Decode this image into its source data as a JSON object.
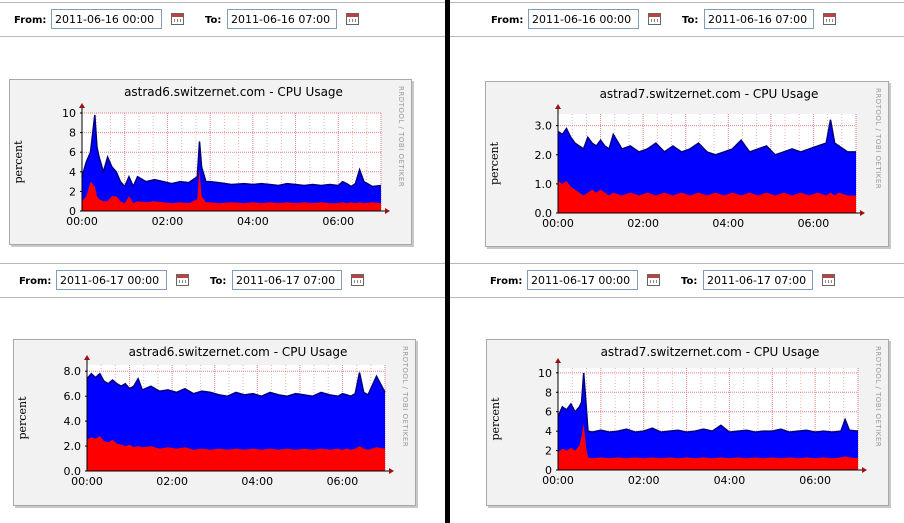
{
  "panels": [
    {
      "from_label": "From:",
      "from_value": "2011-06-16 00:00",
      "to_label": "To:",
      "to_value": "2011-06-16 07:00",
      "chart_data": {
        "type": "area",
        "title": "astrad6.switzernet.com - CPU Usage",
        "ylabel": "percent",
        "watermark": "RRDTOOL / TOBI OETIKER",
        "x_ticks": [
          "00:00",
          "02:00",
          "04:00",
          "06:00"
        ],
        "y_ticks": [
          "0",
          "2",
          "4",
          "6",
          "8",
          "10"
        ],
        "xlim": [
          0,
          7
        ],
        "ylim": [
          0,
          10
        ],
        "grid": true,
        "colors": {
          "total": "#0000ff",
          "lower": "#ff0000",
          "line": "#000080"
        },
        "x": [
          0.0,
          0.1,
          0.2,
          0.3,
          0.35,
          0.4,
          0.5,
          0.6,
          0.7,
          0.8,
          0.9,
          1.0,
          1.1,
          1.2,
          1.3,
          1.5,
          1.7,
          1.9,
          2.1,
          2.3,
          2.5,
          2.6,
          2.7,
          2.75,
          2.8,
          2.9,
          3.0,
          3.2,
          3.5,
          3.8,
          4.0,
          4.2,
          4.4,
          4.6,
          4.8,
          5.0,
          5.2,
          5.4,
          5.6,
          5.8,
          6.0,
          6.1,
          6.2,
          6.3,
          6.4,
          6.5,
          6.6,
          6.8,
          7.0
        ],
        "series": [
          {
            "values": [
              3.5,
              5.0,
              6.0,
              9.8,
              6.5,
              5.5,
              4.0,
              5.5,
              4.5,
              4.0,
              3.0,
              2.5,
              3.5,
              2.5,
              3.5,
              3.0,
              3.2,
              3.0,
              2.8,
              3.0,
              2.9,
              3.2,
              3.5,
              7.1,
              4.5,
              3.0,
              3.0,
              2.9,
              2.7,
              2.8,
              2.7,
              2.8,
              2.7,
              2.6,
              2.8,
              2.7,
              2.6,
              2.7,
              2.6,
              2.7,
              2.6,
              3.0,
              2.8,
              2.5,
              2.8,
              4.2,
              3.0,
              2.5,
              2.6
            ]
          },
          {
            "values": [
              1.0,
              1.5,
              3.0,
              2.5,
              1.5,
              1.2,
              1.0,
              1.0,
              1.5,
              1.5,
              1.0,
              0.8,
              1.5,
              0.8,
              1.0,
              0.9,
              1.0,
              0.9,
              0.8,
              0.9,
              0.8,
              1.0,
              1.2,
              4.2,
              1.5,
              0.9,
              0.9,
              0.8,
              0.9,
              0.8,
              0.9,
              0.8,
              0.9,
              0.8,
              0.9,
              0.8,
              0.9,
              0.8,
              0.9,
              0.8,
              0.8,
              0.9,
              0.8,
              0.9,
              0.8,
              0.9,
              0.8,
              0.9,
              0.8
            ]
          }
        ]
      }
    },
    {
      "from_label": "From:",
      "from_value": "2011-06-16 00:00",
      "to_label": "To:",
      "to_value": "2011-06-16 07:00",
      "chart_data": {
        "type": "area",
        "title": "astrad7.switzernet.com - CPU Usage",
        "ylabel": "percent",
        "watermark": "RRDTOOL / TOBI OETIKER",
        "x_ticks": [
          "00:00",
          "02:00",
          "04:00",
          "06:00"
        ],
        "y_ticks": [
          "0.0",
          "1.0",
          "2.0",
          "3.0"
        ],
        "xlim": [
          0,
          7
        ],
        "ylim": [
          0,
          3.4
        ],
        "grid": true,
        "colors": {
          "total": "#0000ff",
          "lower": "#ff0000",
          "line": "#000080"
        },
        "x": [
          0.0,
          0.1,
          0.2,
          0.3,
          0.4,
          0.5,
          0.6,
          0.7,
          0.8,
          0.9,
          1.0,
          1.1,
          1.2,
          1.3,
          1.5,
          1.7,
          1.9,
          2.1,
          2.3,
          2.5,
          2.7,
          2.9,
          3.1,
          3.3,
          3.5,
          3.7,
          3.9,
          4.1,
          4.3,
          4.5,
          4.7,
          4.9,
          5.1,
          5.3,
          5.5,
          5.7,
          5.9,
          6.1,
          6.3,
          6.4,
          6.5,
          6.6,
          6.8,
          7.0
        ],
        "series": [
          {
            "values": [
              2.8,
              2.7,
              2.9,
              2.6,
              2.4,
              2.3,
              2.2,
              2.6,
              2.4,
              2.3,
              2.5,
              2.3,
              2.2,
              2.7,
              2.2,
              2.3,
              2.1,
              2.2,
              2.4,
              2.1,
              2.3,
              2.1,
              2.2,
              2.4,
              2.1,
              2.0,
              2.1,
              2.2,
              2.5,
              2.1,
              2.2,
              2.3,
              2.0,
              2.1,
              2.2,
              2.1,
              2.2,
              2.3,
              2.4,
              3.2,
              2.4,
              2.3,
              2.1,
              2.1
            ]
          },
          {
            "values": [
              1.1,
              1.0,
              1.1,
              0.9,
              0.8,
              0.7,
              0.6,
              0.7,
              0.8,
              0.7,
              0.8,
              0.7,
              0.6,
              0.7,
              0.6,
              0.7,
              0.6,
              0.7,
              0.6,
              0.7,
              0.6,
              0.7,
              0.6,
              0.7,
              0.6,
              0.7,
              0.6,
              0.7,
              0.6,
              0.7,
              0.6,
              0.7,
              0.6,
              0.7,
              0.6,
              0.7,
              0.6,
              0.7,
              0.6,
              0.7,
              0.6,
              0.7,
              0.6,
              0.6
            ]
          }
        ]
      }
    },
    {
      "from_label": "From:",
      "from_value": "2011-06-17 00:00",
      "to_label": "To:",
      "to_value": "2011-06-17 07:00",
      "chart_data": {
        "type": "area",
        "title": "astrad6.switzernet.com - CPU Usage",
        "ylabel": "percent",
        "watermark": "RRDTOOL / TOBI OETIKER",
        "x_ticks": [
          "00:00",
          "02:00",
          "04:00",
          "06:00"
        ],
        "y_ticks": [
          "0.0",
          "2.0",
          "4.0",
          "6.0",
          "8.0"
        ],
        "xlim": [
          0,
          7
        ],
        "ylim": [
          0,
          8.5
        ],
        "grid": true,
        "colors": {
          "total": "#0000ff",
          "lower": "#ff0000",
          "line": "#000080"
        },
        "x": [
          0.0,
          0.1,
          0.2,
          0.3,
          0.4,
          0.5,
          0.6,
          0.7,
          0.8,
          0.9,
          1.0,
          1.1,
          1.2,
          1.3,
          1.5,
          1.7,
          1.9,
          2.1,
          2.3,
          2.5,
          2.7,
          2.9,
          3.1,
          3.3,
          3.5,
          3.7,
          3.9,
          4.1,
          4.3,
          4.5,
          4.7,
          4.9,
          5.1,
          5.3,
          5.5,
          5.7,
          5.9,
          6.0,
          6.1,
          6.2,
          6.3,
          6.4,
          6.5,
          6.6,
          6.8,
          7.0
        ],
        "series": [
          {
            "values": [
              7.4,
              7.8,
              7.5,
              7.8,
              7.2,
              7.0,
              7.3,
              7.0,
              6.8,
              7.0,
              6.6,
              6.8,
              7.4,
              6.5,
              6.8,
              6.4,
              6.5,
              6.3,
              6.6,
              6.2,
              6.4,
              6.3,
              6.1,
              6.0,
              6.3,
              6.1,
              6.2,
              6.0,
              6.3,
              6.1,
              6.0,
              6.2,
              6.1,
              6.0,
              6.3,
              6.1,
              6.0,
              6.2,
              6.1,
              6.0,
              6.2,
              7.9,
              6.3,
              6.1,
              7.6,
              6.3
            ]
          },
          {
            "values": [
              2.5,
              2.7,
              2.6,
              2.8,
              2.4,
              2.3,
              2.5,
              2.2,
              2.1,
              2.0,
              2.1,
              1.9,
              2.0,
              1.9,
              2.0,
              1.8,
              1.9,
              1.8,
              1.9,
              1.7,
              1.8,
              1.7,
              1.8,
              1.7,
              1.8,
              1.7,
              1.8,
              1.7,
              1.8,
              1.7,
              1.8,
              1.7,
              1.8,
              1.7,
              1.8,
              1.7,
              1.8,
              1.7,
              1.8,
              1.7,
              1.8,
              2.0,
              1.8,
              1.7,
              1.9,
              1.8
            ]
          }
        ]
      }
    },
    {
      "from_label": "From:",
      "from_value": "2011-06-17 00:00",
      "to_label": "To:",
      "to_value": "2011-06-17 07:00",
      "chart_data": {
        "type": "area",
        "title": "astrad7.switzernet.com - CPU Usage",
        "ylabel": "percent",
        "watermark": "RRDTOOL / TOBI OETIKER",
        "x_ticks": [
          "00:00",
          "02:00",
          "04:00",
          "06:00"
        ],
        "y_ticks": [
          "0",
          "2",
          "4",
          "6",
          "8",
          "10"
        ],
        "xlim": [
          0,
          7
        ],
        "ylim": [
          0,
          10.5
        ],
        "grid": true,
        "colors": {
          "total": "#0000ff",
          "lower": "#ff0000",
          "line": "#000080"
        },
        "x": [
          0.0,
          0.1,
          0.2,
          0.3,
          0.4,
          0.5,
          0.55,
          0.6,
          0.65,
          0.7,
          0.8,
          1.0,
          1.2,
          1.4,
          1.6,
          1.8,
          2.0,
          2.2,
          2.4,
          2.6,
          2.8,
          3.0,
          3.2,
          3.4,
          3.6,
          3.8,
          4.0,
          4.2,
          4.4,
          4.6,
          4.8,
          5.0,
          5.2,
          5.4,
          5.6,
          5.8,
          6.0,
          6.2,
          6.4,
          6.6,
          6.7,
          6.8,
          7.0
        ],
        "series": [
          {
            "values": [
              5.5,
              6.5,
              6.2,
              6.8,
              6.0,
              6.5,
              7.0,
              10.0,
              7.0,
              4.0,
              3.9,
              4.1,
              3.9,
              4.0,
              4.2,
              3.9,
              4.0,
              4.3,
              3.9,
              4.0,
              4.1,
              3.9,
              4.0,
              4.2,
              4.0,
              4.6,
              3.9,
              4.0,
              4.1,
              3.9,
              4.0,
              4.0,
              4.2,
              3.9,
              4.0,
              4.1,
              3.9,
              4.0,
              3.9,
              4.0,
              5.2,
              4.1,
              4.0
            ]
          },
          {
            "values": [
              1.8,
              2.2,
              2.0,
              2.3,
              2.0,
              2.5,
              3.5,
              4.8,
              2.5,
              1.3,
              1.2,
              1.3,
              1.2,
              1.3,
              1.2,
              1.3,
              1.2,
              1.3,
              1.2,
              1.3,
              1.2,
              1.3,
              1.2,
              1.3,
              1.2,
              1.3,
              1.2,
              1.3,
              1.2,
              1.3,
              1.2,
              1.3,
              1.2,
              1.3,
              1.2,
              1.3,
              1.2,
              1.3,
              1.2,
              1.3,
              1.4,
              1.3,
              1.2
            ]
          }
        ]
      }
    }
  ]
}
